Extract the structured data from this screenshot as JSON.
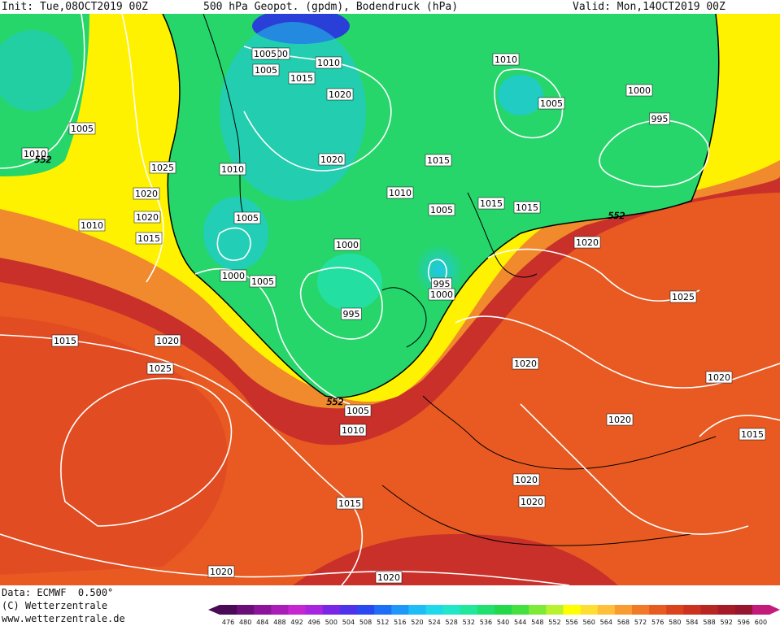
{
  "header": {
    "init": "Init: Tue,08OCT2019 00Z",
    "title": "500 hPa Geopot. (gpdm), Bodendruck (hPa)",
    "valid": "Valid: Mon,14OCT2019 00Z"
  },
  "footer": {
    "data_line": "Data: ECMWF  0.500°",
    "copyright": "(C) Wetterzentrale",
    "website": "www.wetterzentrale.de"
  },
  "colorbar": {
    "labels": [
      "476",
      "480",
      "484",
      "488",
      "492",
      "496",
      "500",
      "504",
      "508",
      "512",
      "516",
      "520",
      "524",
      "528",
      "532",
      "536",
      "540",
      "544",
      "548",
      "552",
      "556",
      "560",
      "564",
      "568",
      "572",
      "576",
      "580",
      "584",
      "588",
      "592",
      "596",
      "600"
    ],
    "colors": [
      "#4a0a55",
      "#6a0f78",
      "#8c149b",
      "#aa1cb8",
      "#c626d2",
      "#a725df",
      "#7a26e6",
      "#4f33ea",
      "#2a49f0",
      "#1f6ef6",
      "#1f97f8",
      "#1fbdf6",
      "#1fd8ea",
      "#22e6c8",
      "#22e69a",
      "#22e070",
      "#24d84c",
      "#44e040",
      "#7eea38",
      "#b8f22e",
      "#ffff00",
      "#ffde33",
      "#ffbf3a",
      "#f89c32",
      "#f07a28",
      "#e65c20",
      "#d9441c",
      "#cc3220",
      "#b82624",
      "#a51c28",
      "#961630",
      "#c21b7c"
    ]
  },
  "map": {
    "colors": {
      "ocean_warm": "#c9302a",
      "ridge": "#e85a22",
      "mid": "#f08a2c",
      "yellow": "#fff200",
      "green": "#26d66a",
      "cyan": "#1fc8e8",
      "low_core": "#2a3fd8",
      "isobar": "#ffffff",
      "coast": "#000000"
    },
    "isobar_labels": [
      "1000",
      "1010",
      "1005",
      "1015",
      "1020",
      "1005",
      "1010",
      "1005",
      "1000",
      "995",
      "1010",
      "1020",
      "1005",
      "1020",
      "1015",
      "1010",
      "1010",
      "1005",
      "1000",
      "1005",
      "1000",
      "995",
      "995",
      "1000",
      "1005",
      "1015",
      "1015",
      "1020",
      "1025",
      "1020",
      "1010",
      "1015",
      "1020",
      "1025",
      "1005",
      "1010",
      "1015",
      "1025",
      "1020",
      "1020",
      "1020",
      "1020",
      "1015",
      "1020",
      "1015",
      "1020",
      "1020"
    ],
    "contour_552_labels": [
      "552",
      "552",
      "552"
    ]
  }
}
